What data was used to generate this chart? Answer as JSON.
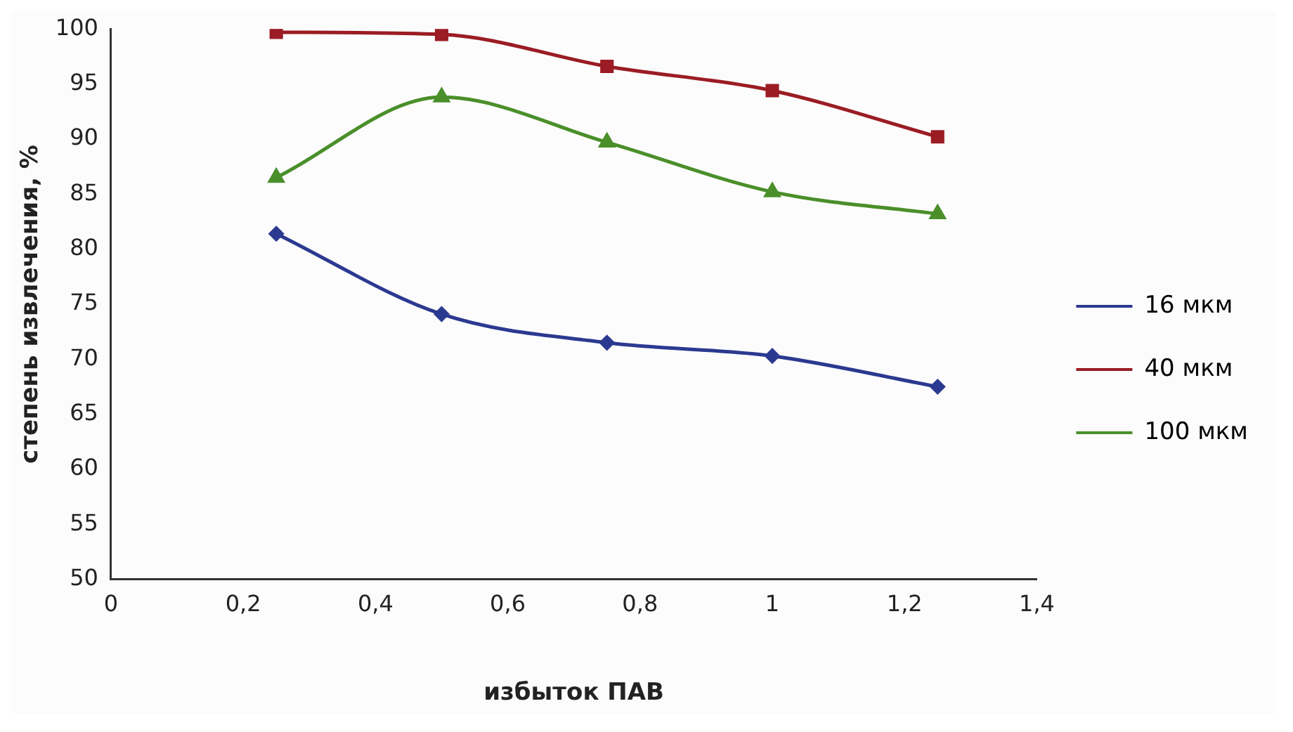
{
  "chart_data": {
    "type": "line",
    "xlabel": "избыток ПАВ",
    "ylabel": "степень извлечения, %",
    "x": [
      0.25,
      0.5,
      0.75,
      1,
      1.25
    ],
    "series": [
      {
        "name": "16 мкм",
        "color": "#2b3990",
        "marker": "diamond",
        "values": [
          81.4,
          74.1,
          71.5,
          70.3,
          67.5
        ]
      },
      {
        "name": "40 мкм",
        "color": "#9b1c24",
        "marker": "square",
        "values": [
          99.7,
          99.5,
          96.6,
          94.4,
          90.2
        ]
      },
      {
        "name": "100 мкм",
        "color": "#4a8f2a",
        "marker": "triangle",
        "values": [
          86.5,
          93.8,
          89.7,
          85.2,
          83.2
        ]
      }
    ],
    "xlim": [
      0,
      1.4
    ],
    "xticks": [
      {
        "value": 0,
        "label": "0"
      },
      {
        "value": 0.2,
        "label": "0,2"
      },
      {
        "value": 0.4,
        "label": "0,4"
      },
      {
        "value": 0.6,
        "label": "0,6"
      },
      {
        "value": 0.8,
        "label": "0,8"
      },
      {
        "value": 1,
        "label": "1"
      },
      {
        "value": 1.2,
        "label": "1,2"
      },
      {
        "value": 1.4,
        "label": "1,4"
      }
    ],
    "ylim": [
      50,
      100
    ],
    "yticks": [
      50,
      55,
      60,
      65,
      70,
      75,
      80,
      85,
      90,
      95,
      100
    ],
    "grid": false,
    "legend": "right",
    "line_style": "solid"
  }
}
